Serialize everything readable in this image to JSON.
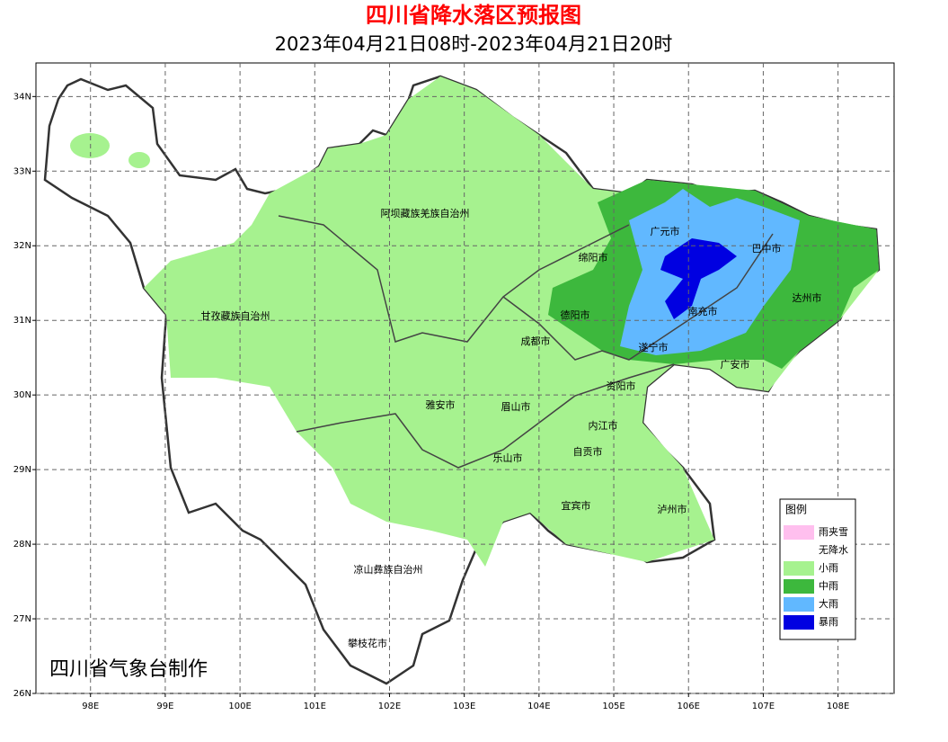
{
  "map": {
    "title": "四川省降水落区预报图",
    "subtitle": "2023年04月21日08时-2023年04月21日20时",
    "xlim": [
      97.27,
      108.75
    ],
    "ylim": [
      26,
      34.45
    ],
    "xticks": [
      {
        "value": 98,
        "label": "98E"
      },
      {
        "value": 99,
        "label": "99E"
      },
      {
        "value": 100,
        "label": "100E"
      },
      {
        "value": 101,
        "label": "101E"
      },
      {
        "value": 102,
        "label": "102E"
      },
      {
        "value": 103,
        "label": "103E"
      },
      {
        "value": 104,
        "label": "104E"
      },
      {
        "value": 105,
        "label": "105E"
      },
      {
        "value": 106,
        "label": "106E"
      },
      {
        "value": 107,
        "label": "107E"
      },
      {
        "value": 108,
        "label": "108E"
      }
    ],
    "yticks": [
      {
        "value": 26,
        "label": "26N"
      },
      {
        "value": 27,
        "label": "27N"
      },
      {
        "value": 28,
        "label": "28N"
      },
      {
        "value": 29,
        "label": "29N"
      },
      {
        "value": 30,
        "label": "30N"
      },
      {
        "value": 31,
        "label": "31N"
      },
      {
        "value": 32,
        "label": "32N"
      },
      {
        "value": 33,
        "label": "33N"
      },
      {
        "value": 34,
        "label": "34N"
      }
    ],
    "grid": true,
    "regions": [
      "阿坝藏族羌族自治州",
      "甘孜藏族自治州",
      "绵阳市",
      "广元市",
      "巴中市",
      "达州市",
      "南充市",
      "德阳市",
      "成都市",
      "遂宁市",
      "广安市",
      "资阳市",
      "雅安市",
      "眉山市",
      "内江市",
      "自贡市",
      "乐山市",
      "宜宾市",
      "泸州市",
      "凉山彝族自治州",
      "攀枝花市"
    ],
    "legend": {
      "title": "图例",
      "items": [
        {
          "label": "雨夹雪",
          "color": "#ffbfee"
        },
        {
          "label": "无降水",
          "color": "#ffffff"
        },
        {
          "label": "小雨",
          "color": "#a6f28f"
        },
        {
          "label": "中雨",
          "color": "#3db83d"
        },
        {
          "label": "大雨",
          "color": "#61b8ff"
        },
        {
          "label": "暴雨",
          "color": "#0000e1"
        }
      ]
    },
    "credit": "四川省气象台制作"
  }
}
